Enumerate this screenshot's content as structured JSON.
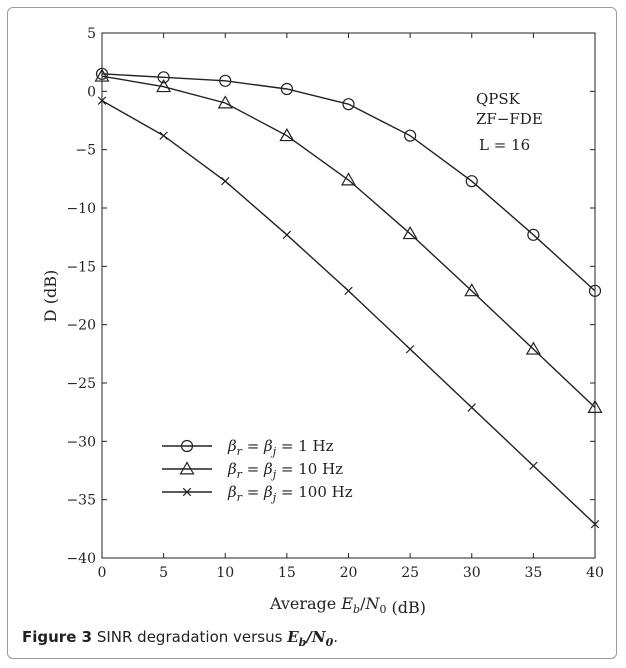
{
  "chart_data": {
    "type": "line",
    "xlabel_pre": "Average ",
    "xlabel_math": "E_b/N_0",
    "xlabel_post": " (dB)",
    "ylabel": "D (dB)",
    "xlim": [
      0,
      40
    ],
    "ylim": [
      -40,
      5
    ],
    "xticks": [
      0,
      5,
      10,
      15,
      20,
      25,
      30,
      35,
      40
    ],
    "yticks": [
      5,
      0,
      -5,
      -10,
      -15,
      -20,
      -25,
      -30,
      -35,
      -40
    ],
    "grid": false,
    "legend_position": "bottom-left",
    "series": [
      {
        "name": "βr = βj = 1 Hz",
        "marker": "circle",
        "x": [
          0,
          5,
          10,
          15,
          20,
          25,
          30,
          35,
          40
        ],
        "y": [
          1.5,
          1.2,
          0.9,
          0.2,
          -1.1,
          -3.8,
          -7.7,
          -12.3,
          -17.1
        ]
      },
      {
        "name": "βr = βj = 10 Hz",
        "marker": "triangle",
        "x": [
          0,
          5,
          10,
          15,
          20,
          25,
          30,
          35,
          40
        ],
        "y": [
          1.3,
          0.4,
          -1.0,
          -3.8,
          -7.6,
          -12.2,
          -17.1,
          -22.1,
          -27.1
        ]
      },
      {
        "name": "βr = βj = 100 Hz",
        "marker": "x",
        "x": [
          0,
          5,
          10,
          15,
          20,
          25,
          30,
          35,
          40
        ],
        "y": [
          -0.8,
          -3.8,
          -7.7,
          -12.3,
          -17.1,
          -22.1,
          -27.1,
          -32.1,
          -37.1
        ]
      }
    ],
    "annotations": [
      "QPSK",
      "ZF−FDE",
      "L = 16"
    ]
  },
  "caption": {
    "label": "Figure 3",
    "text": "SINR degradation versus ",
    "math": "E_b/N_0",
    "end": "."
  }
}
